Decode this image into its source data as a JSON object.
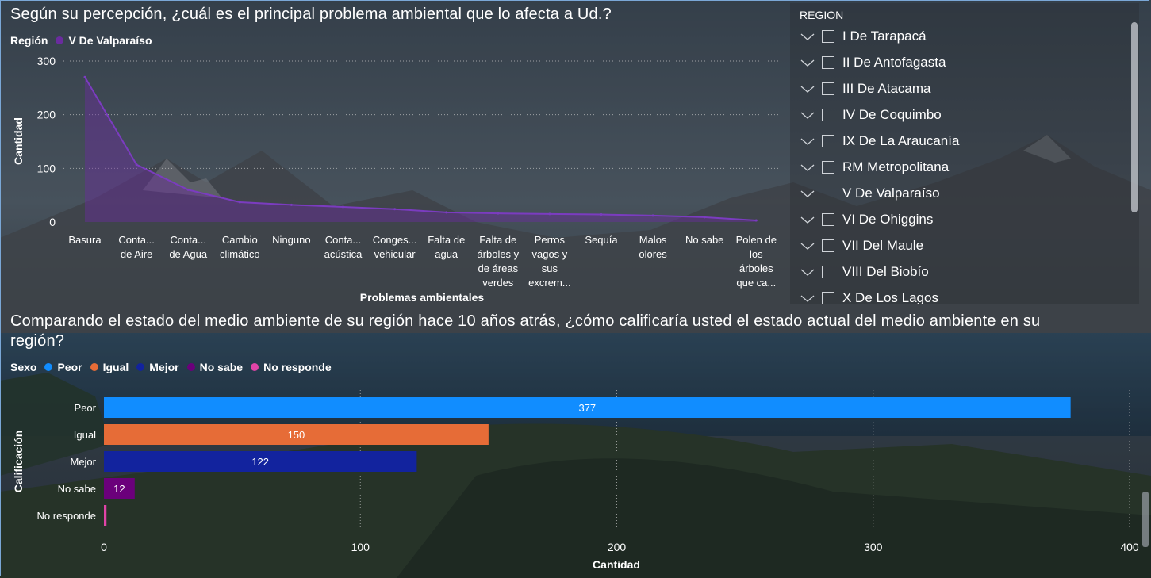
{
  "chart1": {
    "title": "Según su percepción, ¿cuál es el principal problema ambiental que lo afecta a Ud.?",
    "legend_title": "Región",
    "legend_item": "V De Valparaíso",
    "colors": {
      "series": "#6a2c9e"
    }
  },
  "chart2": {
    "title_line1": "Comparando el estado del medio ambiente de su región hace 10 años atrás, ¿cómo calificaría usted el estado actual del medio ambiente en su",
    "title_line2": "región?",
    "legend_title": "Sexo",
    "legend_items": [
      {
        "label": "Peor",
        "color": "#118dff"
      },
      {
        "label": "Igual",
        "color": "#e66c37"
      },
      {
        "label": "Mejor",
        "color": "#12239e"
      },
      {
        "label": "No sabe",
        "color": "#6b007b"
      },
      {
        "label": "No responde",
        "color": "#e044a7"
      }
    ]
  },
  "chart_data": [
    {
      "type": "area",
      "title": "Según su percepción, ¿cuál es el principal problema ambiental que lo afecta a Ud.?",
      "xlabel": "Problemas ambientales",
      "ylabel": "Cantidad",
      "ylim": [
        0,
        300
      ],
      "yticks": [
        0,
        100,
        200,
        300
      ],
      "grid": true,
      "legend_position": "top-left",
      "categories": [
        [
          "Basura"
        ],
        [
          "Conta...",
          "de Aire"
        ],
        [
          "Conta...",
          "de Agua"
        ],
        [
          "Cambio",
          "climático"
        ],
        [
          "Ninguno"
        ],
        [
          "Conta...",
          "acústica"
        ],
        [
          "Conges...",
          "vehicular"
        ],
        [
          "Falta de",
          "agua"
        ],
        [
          "Falta de",
          "árboles y",
          "de áreas",
          "verdes"
        ],
        [
          "Perros",
          "vagos y",
          "sus",
          "excrem..."
        ],
        [
          "Sequía"
        ],
        [
          "Malos",
          "olores"
        ],
        [
          "No sabe"
        ],
        [
          "Polen de",
          "los",
          "árboles",
          "que ca..."
        ]
      ],
      "series": [
        {
          "name": "V De Valparaíso",
          "values": [
            270,
            107,
            60,
            37,
            32,
            28,
            24,
            18,
            16,
            15,
            14,
            12,
            9,
            3
          ]
        }
      ]
    },
    {
      "type": "bar",
      "orientation": "horizontal",
      "title": "Comparando el estado del medio ambiente de su región hace 10 años atrás, ¿cómo calificaría usted el estado actual del medio ambiente en su región?",
      "xlabel": "Cantidad",
      "ylabel": "Calificación",
      "xlim": [
        0,
        400
      ],
      "xticks": [
        0,
        100,
        200,
        300,
        400
      ],
      "grid": true,
      "legend_position": "top-left",
      "categories": [
        "Peor",
        "Igual",
        "Mejor",
        "No sabe",
        "No responde"
      ],
      "values": [
        377,
        150,
        122,
        12,
        1
      ],
      "data_labels": [
        "377",
        "150",
        "122",
        "12",
        ""
      ],
      "colors": [
        "#118dff",
        "#e66c37",
        "#12239e",
        "#6b007b",
        "#e044a7"
      ]
    }
  ],
  "slicer": {
    "title": "REGION",
    "items": [
      {
        "label": "I De Tarapacá",
        "selected": false
      },
      {
        "label": "II De Antofagasta",
        "selected": false
      },
      {
        "label": "III De Atacama",
        "selected": false
      },
      {
        "label": "IV De Coquimbo",
        "selected": false
      },
      {
        "label": "IX De La Araucanía",
        "selected": false
      },
      {
        "label": "RM Metropolitana",
        "selected": false
      },
      {
        "label": "V De Valparaíso",
        "selected": true
      },
      {
        "label": "VI De Ohiggins",
        "selected": false
      },
      {
        "label": "VII Del Maule",
        "selected": false
      },
      {
        "label": "VIII Del Biobío",
        "selected": false
      },
      {
        "label": "X De Los Lagos",
        "selected": false
      }
    ]
  }
}
